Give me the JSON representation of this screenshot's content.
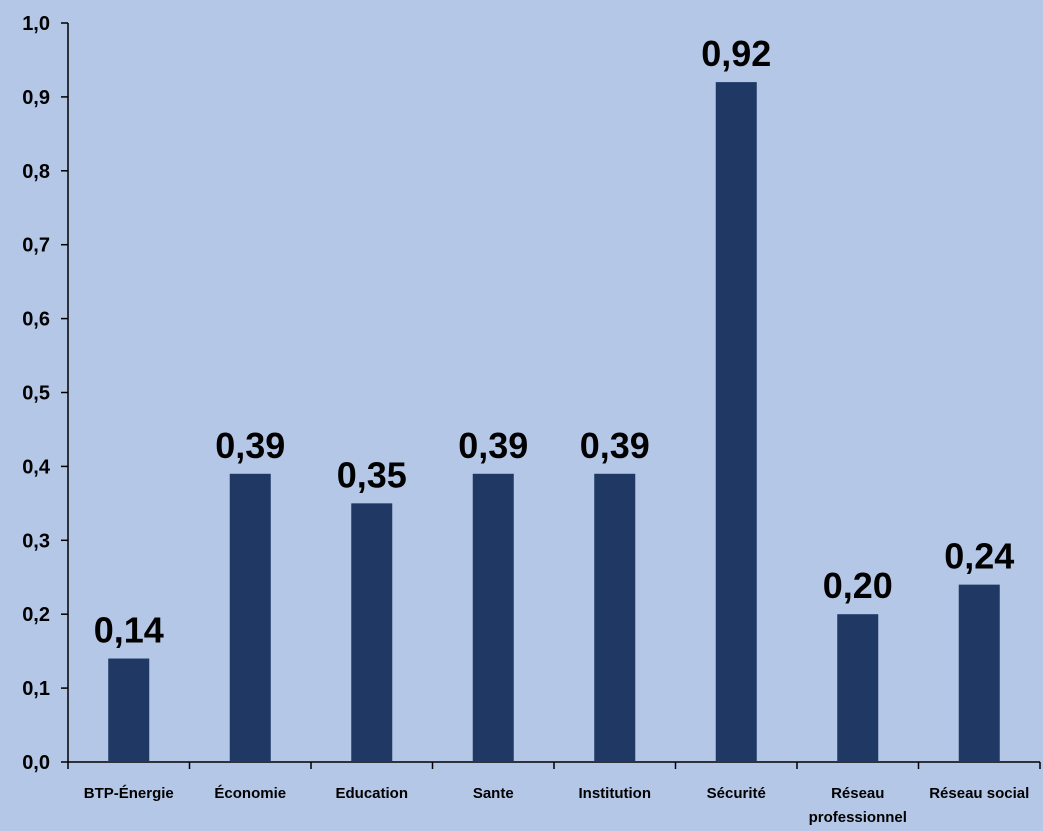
{
  "chart_data": {
    "type": "bar",
    "categories": [
      "BTP-Énergie",
      "Économie",
      "Education",
      "Sante",
      "Institution",
      "Sécurité",
      "Réseau professionnel",
      "Réseau social"
    ],
    "values": [
      0.14,
      0.39,
      0.35,
      0.39,
      0.39,
      0.92,
      0.2,
      0.24
    ],
    "data_labels": [
      "0,14",
      "0,39",
      "0,35",
      "0,39",
      "0,39",
      "0,92",
      "0,20",
      "0,24"
    ],
    "y_ticks": [
      0.0,
      0.1,
      0.2,
      0.3,
      0.4,
      0.5,
      0.6,
      0.7,
      0.8,
      0.9,
      1.0
    ],
    "y_tick_labels": [
      "0,0",
      "0,1",
      "0,2",
      "0,3",
      "0,4",
      "0,5",
      "0,6",
      "0,7",
      "0,8",
      "0,9",
      "1,0"
    ],
    "ylim": [
      0,
      1.0
    ],
    "title": "",
    "xlabel": "",
    "ylabel": "",
    "grid": false,
    "legend": "none",
    "colors": {
      "background": "#b4c7e7",
      "bar": "#1f3864",
      "text": "#000000",
      "axis": "#000000"
    }
  }
}
